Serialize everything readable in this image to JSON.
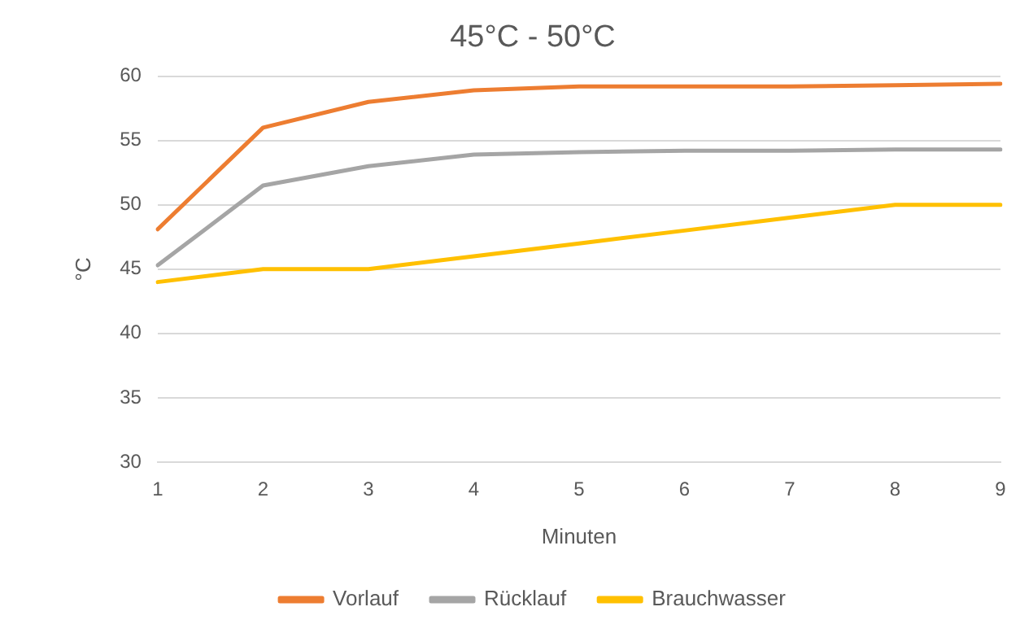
{
  "chart_data": {
    "type": "line",
    "title": "45°C - 50°C",
    "xlabel": "Minuten",
    "ylabel": "°C",
    "categories": [
      "1",
      "2",
      "3",
      "4",
      "5",
      "6",
      "7",
      "8",
      "9"
    ],
    "series": [
      {
        "name": "Vorlauf",
        "color": "#ed7d31",
        "values": [
          48.1,
          56,
          58,
          58.9,
          59.2,
          59.2,
          59.2,
          59.3,
          59.4
        ]
      },
      {
        "name": "Rücklauf",
        "color": "#a5a5a5",
        "values": [
          45.3,
          51.5,
          53,
          53.9,
          54.1,
          54.2,
          54.2,
          54.3,
          54.3
        ]
      },
      {
        "name": "Brauchwasser",
        "color": "#ffc000",
        "values": [
          44,
          45,
          45,
          46,
          47,
          48,
          49,
          50,
          50
        ]
      }
    ],
    "ylim": [
      30,
      60
    ],
    "yticks": [
      30,
      35,
      40,
      45,
      50,
      55,
      60
    ],
    "grid": "y",
    "legend": "bottom",
    "marker": "none",
    "line_style": "solid"
  }
}
